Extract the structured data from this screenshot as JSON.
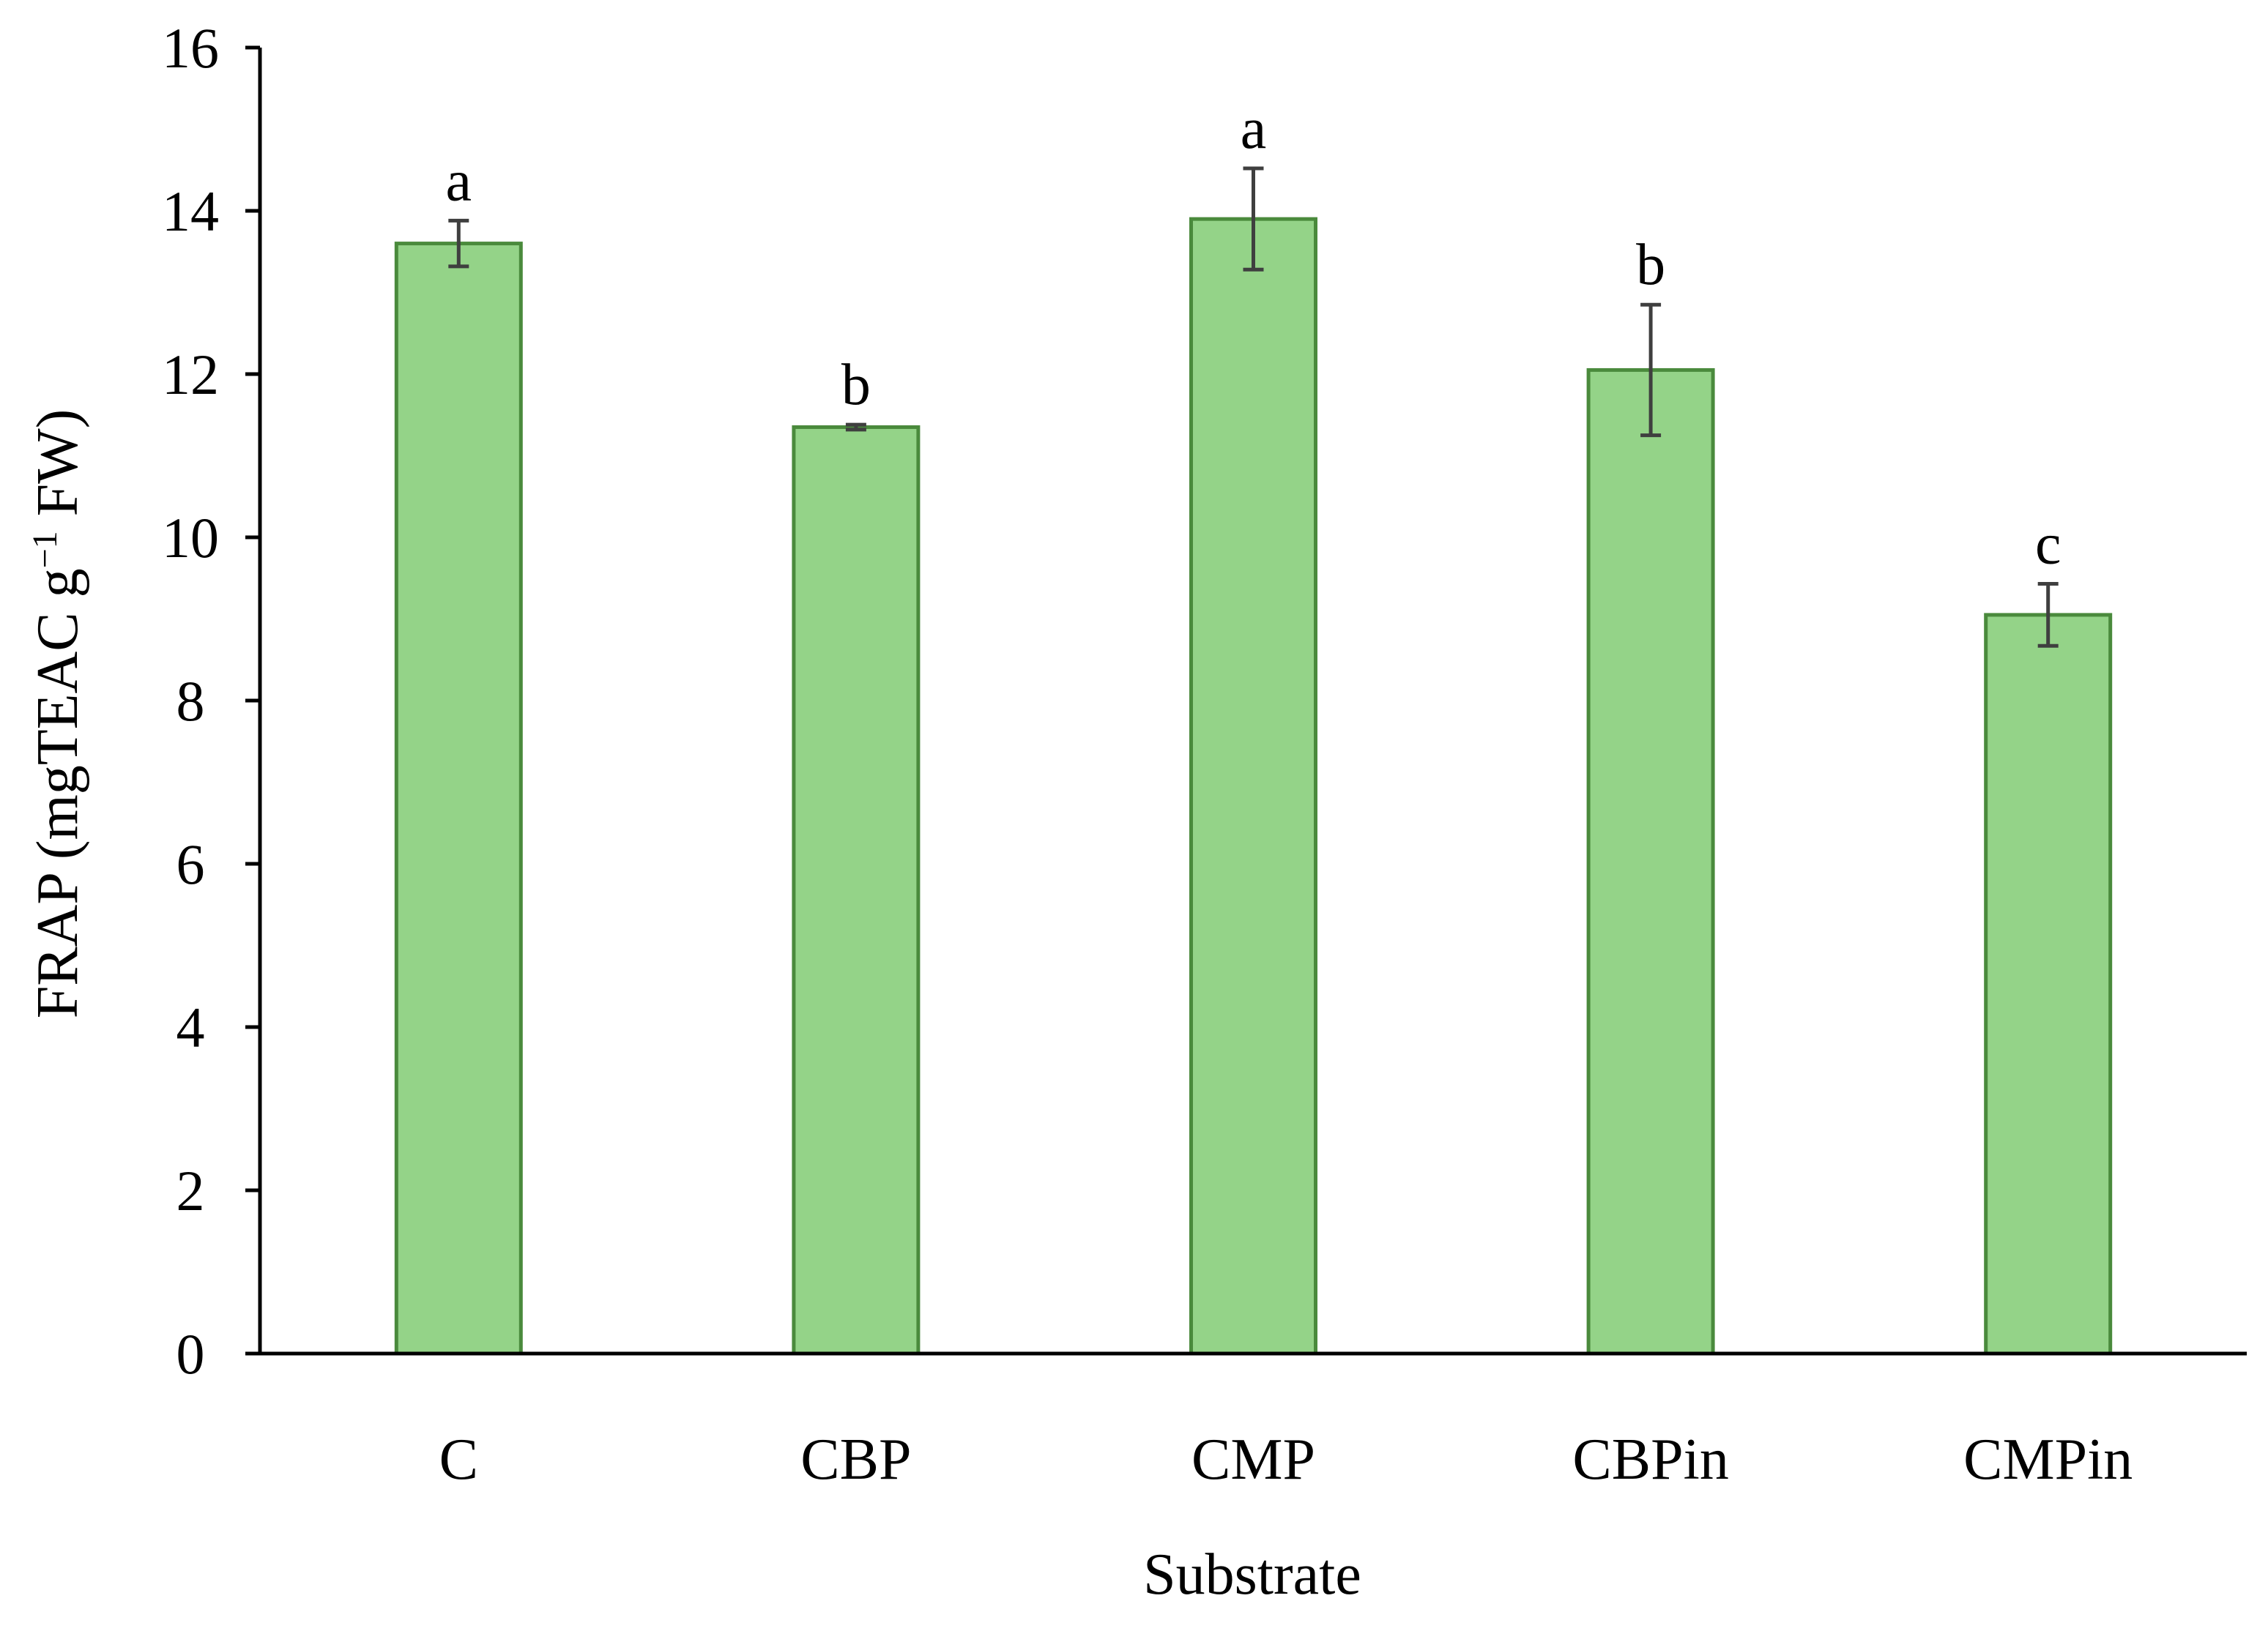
{
  "chart_data": {
    "type": "bar",
    "title": "",
    "xlabel": "Substrate",
    "ylabel": {
      "prefix": "FRAP (mgTEAC g",
      "superscript": "−1",
      "suffix": " FW)"
    },
    "ylim": [
      0,
      16
    ],
    "yticks": [
      0,
      2,
      4,
      6,
      8,
      10,
      12,
      14,
      16
    ],
    "grid": false,
    "legend": "none",
    "categories": [
      "C",
      "CBP",
      "CMP",
      "CBPin",
      "CMPin"
    ],
    "values": [
      13.6,
      11.35,
      13.9,
      12.05,
      9.05
    ],
    "errors": [
      0.28,
      0.03,
      0.62,
      0.8,
      0.38
    ],
    "significance_letters": [
      "a",
      "b",
      "a",
      "b",
      "c"
    ],
    "colors": {
      "bar_fill": "#94d388",
      "bar_edge": "#4a8a3c",
      "error_bar": "#3f3f3f",
      "axis": "#000000"
    }
  }
}
